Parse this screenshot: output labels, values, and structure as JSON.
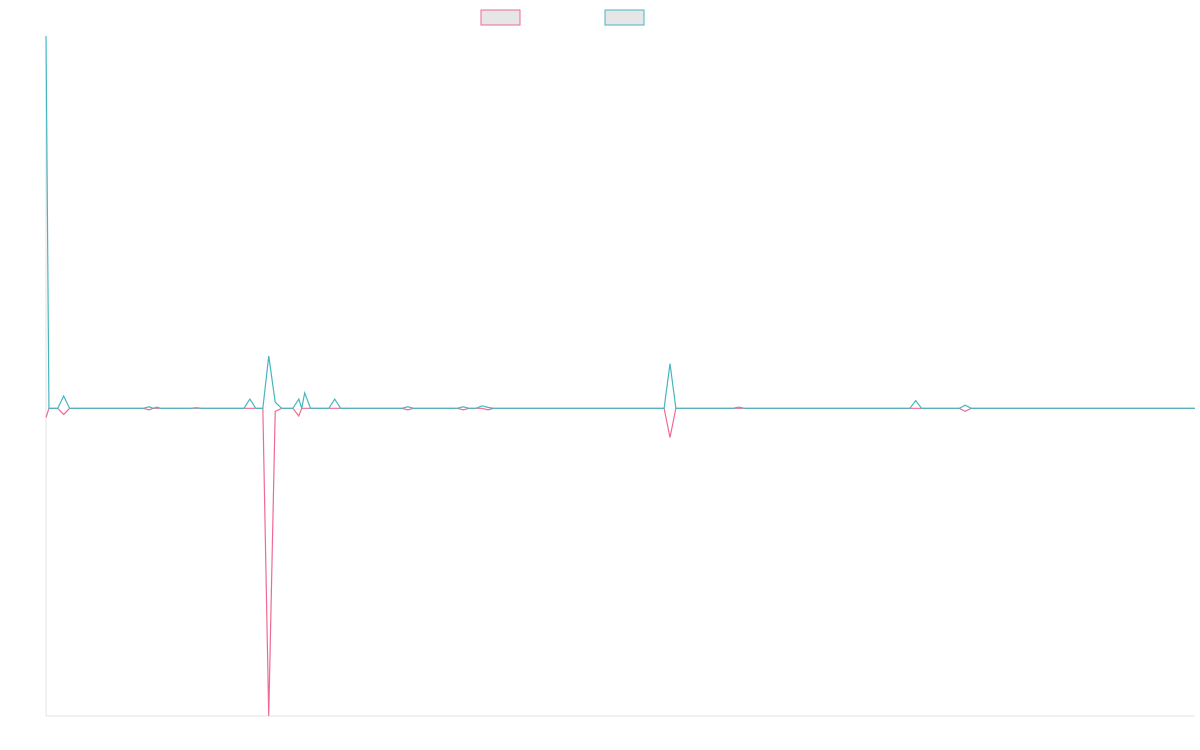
{
  "chart_data": {
    "type": "line",
    "x": [
      0,
      0.5,
      2,
      3,
      4,
      16.5,
      17.5,
      18.2,
      18.8,
      19.5,
      24.5,
      25.5,
      26.5,
      33.6,
      34.6,
      35.6,
      36.8,
      37.8,
      38.9,
      40,
      41.9,
      42.9,
      43.4,
      43.9,
      44.9,
      48,
      49,
      50,
      60.4,
      61.4,
      62.4,
      69.8,
      70.8,
      71.8,
      73,
      74,
      75,
      76,
      104.9,
      105.9,
      106.9,
      116.6,
      117.6,
      118.6,
      146.6,
      147.6,
      148.6,
      155,
      156,
      157,
      195
    ],
    "series": [
      {
        "color": "#ef6a92",
        "values": [
          -3,
          0,
          0,
          -2,
          0,
          0,
          -0.5,
          0,
          0,
          0,
          0,
          0,
          0,
          0,
          0,
          0,
          0,
          -100,
          -1,
          0,
          0,
          -2.5,
          0,
          0,
          0,
          0,
          0,
          0,
          0,
          -0.5,
          0,
          0,
          -0.5,
          0,
          0,
          0,
          -0.5,
          0,
          0,
          -9.5,
          0,
          0,
          0,
          0,
          0,
          0,
          0,
          0,
          -1,
          0,
          0
        ]
      },
      {
        "color": "#45b6c0",
        "values": [
          121,
          0,
          0,
          4,
          0,
          0,
          0.5,
          0,
          0.4,
          0,
          0,
          0.2,
          0,
          0,
          3,
          0,
          0,
          17,
          2,
          0,
          0,
          3,
          0,
          5,
          0,
          0,
          3,
          0,
          0,
          0.5,
          0,
          0,
          0.5,
          0,
          0,
          0.8,
          0.3,
          0,
          0,
          14.5,
          0,
          0,
          0.4,
          0,
          0,
          2.5,
          0,
          0,
          1,
          0,
          0
        ]
      }
    ],
    "xlim": [
      0,
      195
    ],
    "ylim": [
      -100,
      121
    ]
  }
}
